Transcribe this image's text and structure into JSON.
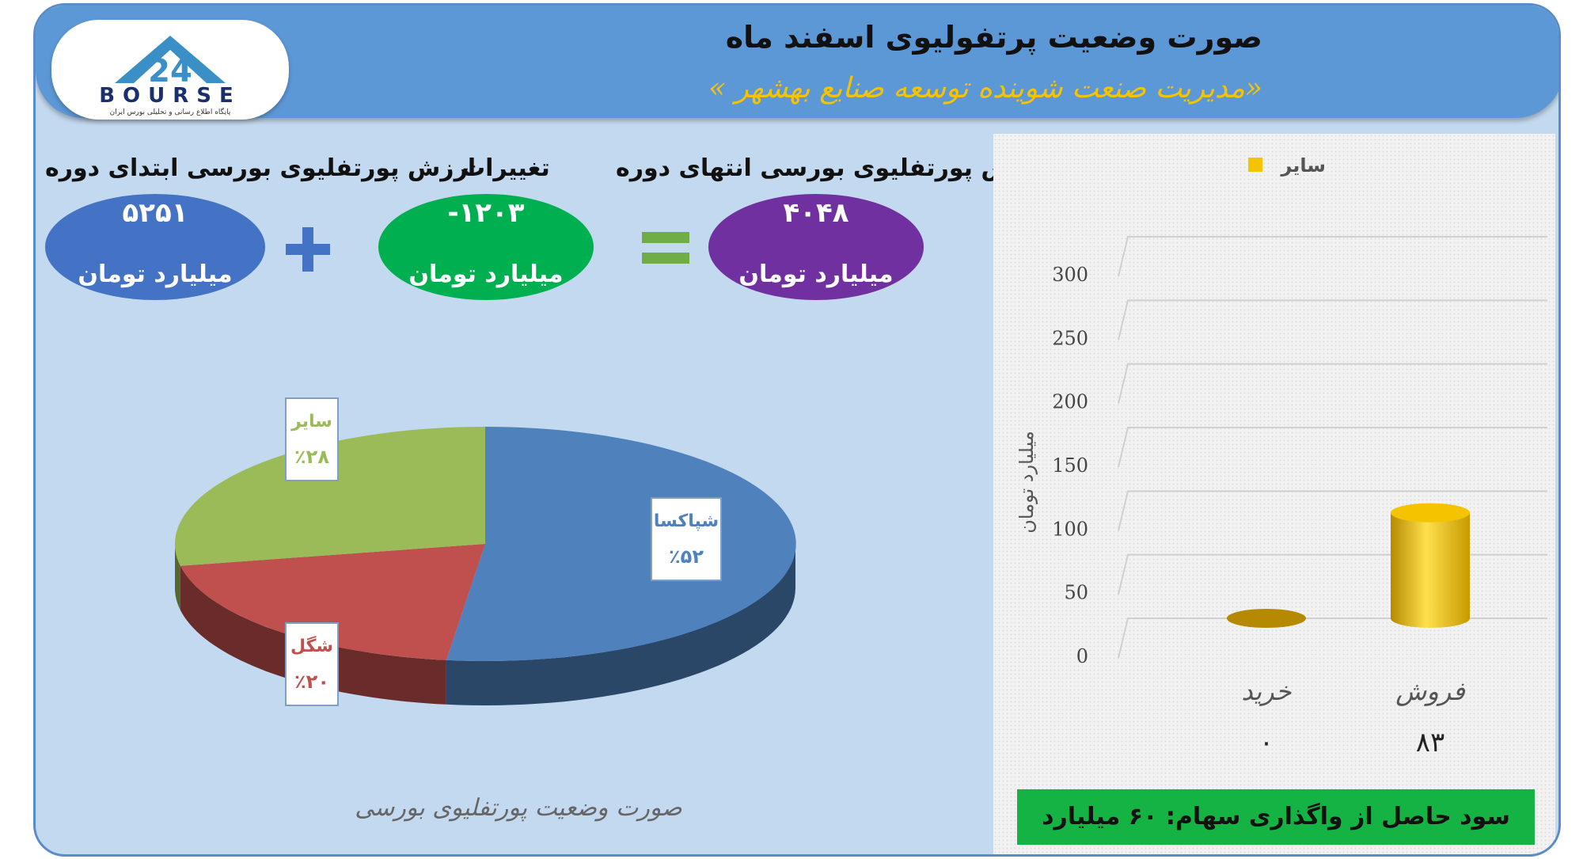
{
  "header": {
    "title": "صورت وضعیت پرتفولیوی اسفند ماه",
    "subtitle": "«مدیریت صنعت شوینده توسعه صنایع بهشهر »"
  },
  "logo": {
    "text": "BOURSE",
    "tagline": "پایگاه اطلاع رسانی و تحلیلی بورس ایران"
  },
  "summary": {
    "start": {
      "label": "ارزش پورتفلیوی بورسی ابتدای دوره",
      "value": "۵۲۵۱",
      "unit": "میلیارد تومان",
      "color": "#4472c4"
    },
    "change": {
      "label": "تغییرات",
      "value": "-۱۲۰۳",
      "unit": "میلیارد تومان",
      "color": "#00b050"
    },
    "end": {
      "label": "ارزش پورتفلیوی بورسی انتهای دوره",
      "value": "۴۰۴۸",
      "unit": "میلیارد تومان",
      "color": "#7030a0"
    },
    "plus_color": "#4472c4",
    "equals_color": "#70ad47"
  },
  "chart_data": [
    {
      "type": "pie",
      "title": "صورت وضعیت پورتفلیوی بورسی",
      "slices": [
        {
          "name": "شپاکسا",
          "label": "٪۵۲",
          "value": 52,
          "color": "#4f81bd"
        },
        {
          "name": "شگل",
          "label": "٪۲۰",
          "value": 20,
          "color": "#c0504d"
        },
        {
          "name": "سایر",
          "label": "٪۲۸",
          "value": 28,
          "color": "#9bbb59"
        }
      ]
    },
    {
      "type": "bar",
      "legend": "سایر",
      "legend_color": "#f5c400",
      "ylabel": "میلیارد تومان",
      "ylim": [
        0,
        300
      ],
      "yticks": [
        "0",
        "50",
        "100",
        "150",
        "200",
        "250",
        "300"
      ],
      "categories": [
        "فروش",
        "خرید"
      ],
      "values": [
        83,
        0
      ],
      "value_labels": [
        "۸۳",
        "۰"
      ]
    }
  ],
  "banner": {
    "text": "سود حاصل از واگذاری سهام: ۶۰ میلیارد تومان"
  }
}
